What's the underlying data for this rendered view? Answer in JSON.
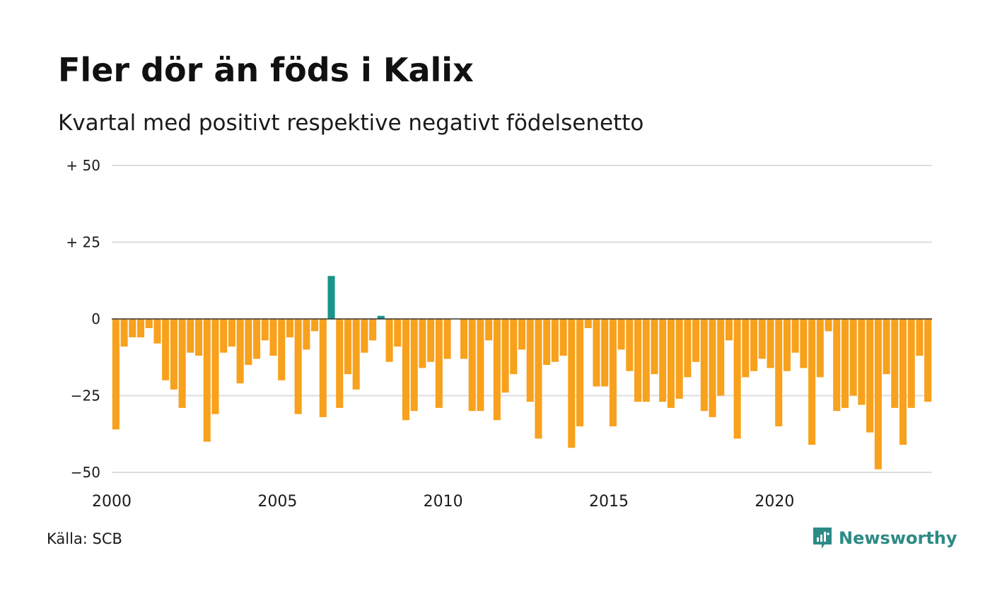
{
  "title": "Fler dör än föds i Kalix",
  "subtitle": "Kvartal med positivt respektive negativt födelsenetto",
  "source": "Källa: SCB",
  "brand": {
    "name": "Newsworthy",
    "icon": "newsworthy-logo-icon",
    "color": "#2d8a85"
  },
  "colors": {
    "positive": "#1a9488",
    "negative": "#f8a11c",
    "grid": "#dddddd",
    "zero_line": "#333333"
  },
  "chart_data": {
    "type": "bar",
    "title": "Fler dör än föds i Kalix",
    "subtitle": "Kvartal med positivt respektive negativt födelsenetto",
    "xlabel": "",
    "ylabel": "",
    "x_start_year": 2000,
    "periods_per_year": 4,
    "ylim": [
      -50,
      50
    ],
    "y_ticks": [
      {
        "value": 50,
        "label": "+ 50"
      },
      {
        "value": 25,
        "label": "+ 25"
      },
      {
        "value": 0,
        "label": "0"
      },
      {
        "value": -25,
        "label": "−25"
      },
      {
        "value": -50,
        "label": "−50"
      }
    ],
    "x_ticks": [
      {
        "value": 2000,
        "label": "2000"
      },
      {
        "value": 2005,
        "label": "2005"
      },
      {
        "value": 2010,
        "label": "2010"
      },
      {
        "value": 2015,
        "label": "2015"
      },
      {
        "value": 2020,
        "label": "2020"
      }
    ],
    "grid": true,
    "legend": "none",
    "values": [
      -36,
      -9,
      -6,
      -6,
      -3,
      -8,
      -20,
      -23,
      -29,
      -11,
      -12,
      -40,
      -31,
      -11,
      -9,
      -21,
      -15,
      -13,
      -7,
      -12,
      -20,
      -6,
      -31,
      -10,
      -4,
      -32,
      14,
      -29,
      -18,
      -23,
      -11,
      -7,
      1,
      -14,
      -9,
      -33,
      -30,
      -16,
      -14,
      -29,
      -13,
      0,
      -13,
      -30,
      -30,
      -7,
      -33,
      -24,
      -18,
      -10,
      -27,
      -39,
      -15,
      -14,
      -12,
      -42,
      -35,
      -3,
      -22,
      -22,
      -35,
      -10,
      -17,
      -27,
      -27,
      -18,
      -27,
      -29,
      -26,
      -19,
      -14,
      -30,
      -32,
      -25,
      -7,
      -39,
      -19,
      -17,
      -13,
      -16,
      -35,
      -17,
      -11,
      -16,
      -41,
      -19,
      -4,
      -30,
      -29,
      -25,
      -28,
      -37,
      -49,
      -18,
      -29,
      -41,
      -29,
      -12,
      -27
    ]
  }
}
